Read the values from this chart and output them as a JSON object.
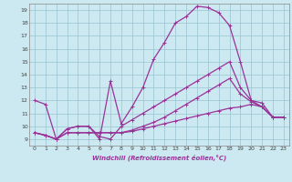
{
  "xlabel": "Windchill (Refroidissement éolien,°C)",
  "bg_color": "#cce8f0",
  "grid_color": "#99c4d0",
  "line_color": "#993399",
  "xlim": [
    -0.5,
    23.5
  ],
  "ylim": [
    8.5,
    19.5
  ],
  "xticks": [
    0,
    1,
    2,
    3,
    4,
    5,
    6,
    7,
    8,
    9,
    10,
    11,
    12,
    13,
    14,
    15,
    16,
    17,
    18,
    19,
    20,
    21,
    22,
    23
  ],
  "yticks": [
    9,
    10,
    11,
    12,
    13,
    14,
    15,
    16,
    17,
    18,
    19
  ],
  "line1_x": [
    0,
    1,
    2,
    3,
    4,
    5,
    6,
    7,
    8,
    9,
    10,
    11,
    12,
    13,
    14,
    15,
    16,
    17,
    18,
    19,
    20,
    21,
    22,
    23
  ],
  "line1_y": [
    12,
    11.7,
    9.0,
    9.8,
    10.0,
    10.0,
    9.0,
    13.5,
    10.2,
    11.5,
    13.0,
    15.2,
    16.5,
    18.0,
    18.5,
    19.3,
    19.2,
    18.8,
    17.8,
    15.0,
    12.0,
    11.8,
    10.7,
    10.7
  ],
  "line2_x": [
    0,
    1,
    2,
    3,
    4,
    5,
    6,
    7,
    8,
    9,
    10,
    11,
    12,
    13,
    14,
    15,
    16,
    17,
    18,
    19,
    20,
    21,
    22,
    23
  ],
  "line2_y": [
    9.5,
    9.3,
    9.0,
    9.8,
    10.0,
    10.0,
    9.2,
    9.0,
    10.0,
    10.5,
    11.0,
    11.5,
    12.0,
    12.5,
    13.0,
    13.5,
    14.0,
    14.5,
    15.0,
    13.0,
    12.0,
    11.5,
    10.7,
    10.7
  ],
  "line3_x": [
    0,
    1,
    2,
    3,
    4,
    5,
    6,
    7,
    8,
    9,
    10,
    11,
    12,
    13,
    14,
    15,
    16,
    17,
    18,
    19,
    20,
    21,
    22,
    23
  ],
  "line3_y": [
    9.5,
    9.3,
    9.0,
    9.5,
    9.5,
    9.5,
    9.5,
    9.5,
    9.5,
    9.6,
    9.8,
    10.0,
    10.2,
    10.4,
    10.6,
    10.8,
    11.0,
    11.2,
    11.4,
    11.5,
    11.7,
    11.5,
    10.7,
    10.7
  ],
  "line4_x": [
    0,
    1,
    2,
    3,
    4,
    5,
    6,
    7,
    8,
    9,
    10,
    11,
    12,
    13,
    14,
    15,
    16,
    17,
    18,
    19,
    20,
    21,
    22,
    23
  ],
  "line4_y": [
    9.5,
    9.3,
    9.0,
    9.5,
    9.5,
    9.5,
    9.5,
    9.5,
    9.5,
    9.7,
    10.0,
    10.3,
    10.7,
    11.2,
    11.7,
    12.2,
    12.7,
    13.2,
    13.7,
    12.5,
    11.9,
    11.5,
    10.7,
    10.7
  ]
}
